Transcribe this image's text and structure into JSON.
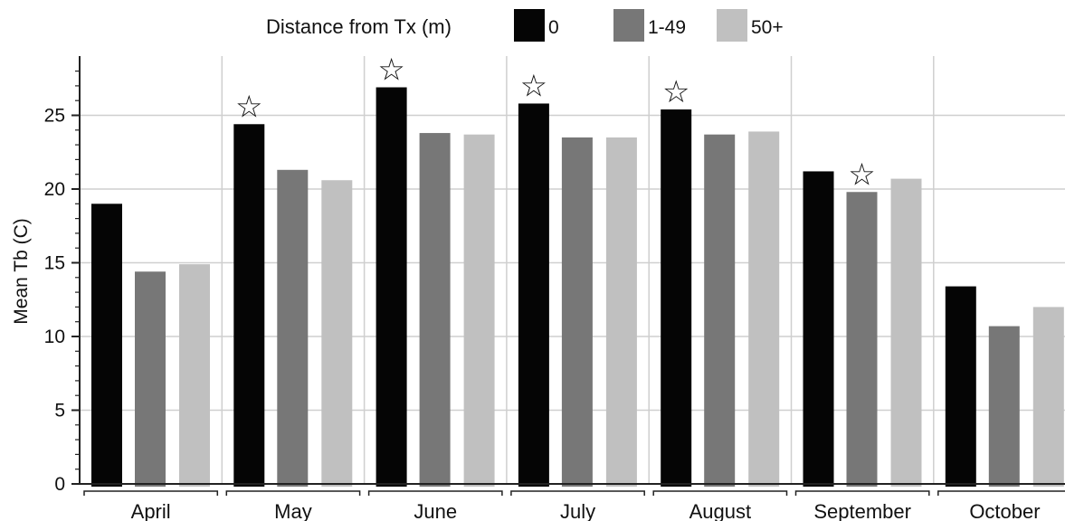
{
  "chart_data": {
    "type": "bar",
    "title": "",
    "xlabel": "",
    "ylabel": "Mean Tb (C)",
    "legend": {
      "title": "Distance from Tx (m)",
      "position": "top"
    },
    "categories": [
      "April",
      "May",
      "June",
      "July",
      "August",
      "September",
      "October"
    ],
    "series": [
      {
        "name": "0",
        "color": "#050505",
        "values": [
          19.0,
          24.4,
          26.9,
          25.8,
          25.4,
          21.2,
          13.4
        ]
      },
      {
        "name": "1-49",
        "color": "#777777",
        "values": [
          14.4,
          21.3,
          23.8,
          23.5,
          23.7,
          19.8,
          10.7
        ]
      },
      {
        "name": "50+",
        "color": "#c0c0c0",
        "values": [
          14.9,
          20.6,
          23.7,
          23.5,
          23.9,
          20.7,
          12.0
        ]
      }
    ],
    "ylim": [
      0,
      28
    ],
    "yticks": [
      0,
      5,
      10,
      15,
      20,
      25
    ],
    "grid": "horizontal and vertical",
    "annotations": [
      {
        "symbol": "☆",
        "category": "May",
        "series": "0"
      },
      {
        "symbol": "☆",
        "category": "June",
        "series": "0"
      },
      {
        "symbol": "☆",
        "category": "July",
        "series": "0"
      },
      {
        "symbol": "☆",
        "category": "August",
        "series": "0"
      },
      {
        "symbol": "☆",
        "category": "September",
        "series": "1-49"
      }
    ]
  }
}
